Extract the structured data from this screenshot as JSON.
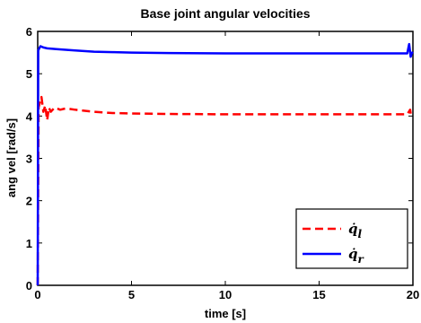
{
  "chart_data": {
    "type": "line",
    "title": "Base joint angular velocities",
    "xlabel": "time [s]",
    "ylabel": "ang vel [rad/s]",
    "xlim": [
      0,
      20
    ],
    "ylim": [
      0,
      6
    ],
    "xticks": [
      0,
      5,
      10,
      15,
      20
    ],
    "yticks": [
      0,
      1,
      2,
      3,
      4,
      5,
      6
    ],
    "grid": false,
    "legend_position": "bottom-right",
    "series": [
      {
        "name": "q̇_l",
        "color": "#ff0000",
        "style": "dashed",
        "x": [
          0,
          0.05,
          0.1,
          0.2,
          0.3,
          0.4,
          0.5,
          0.6,
          0.7,
          0.9,
          1.2,
          1.5,
          2,
          3,
          4,
          5,
          7,
          10,
          15,
          19.7,
          19.85,
          19.9,
          20
        ],
        "y": [
          0,
          4.2,
          4.3,
          4.45,
          4.1,
          4.25,
          3.9,
          4.2,
          4.1,
          4.2,
          4.15,
          4.18,
          4.15,
          4.1,
          4.07,
          4.06,
          4.05,
          4.04,
          4.04,
          4.04,
          4.15,
          4.0,
          4.02
        ]
      },
      {
        "name": "q̇_r",
        "color": "#0000ff",
        "style": "solid",
        "x": [
          0,
          0.03,
          0.08,
          0.15,
          0.3,
          0.5,
          1,
          2,
          3,
          4,
          5,
          7,
          10,
          15,
          19.7,
          19.8,
          19.88,
          19.95,
          20
        ],
        "y": [
          0,
          5.55,
          5.6,
          5.65,
          5.62,
          5.6,
          5.58,
          5.55,
          5.52,
          5.51,
          5.5,
          5.49,
          5.48,
          5.48,
          5.48,
          5.7,
          5.4,
          5.5,
          5.48
        ]
      }
    ],
    "legend": [
      "q̇_l",
      "q̇_r"
    ]
  }
}
